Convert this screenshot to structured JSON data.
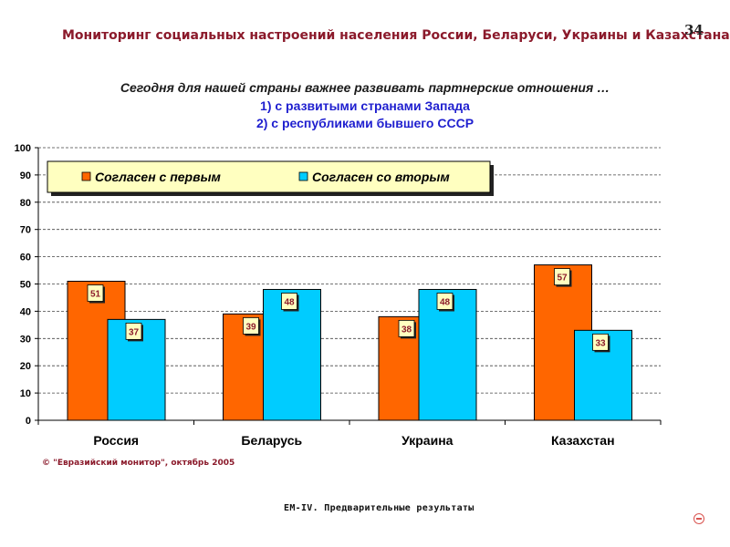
{
  "header": {
    "title": "Мониторинг социальных настроений населения России, Беларуси, Украины и Казахстана",
    "page_number": "34"
  },
  "question": {
    "text": "Сегодня для нашей страны важнее развивать партнерские отношения …",
    "option1": "1) с развитыми странами Запада",
    "option2": "2) с республиками бывшего СССР"
  },
  "chart_data": {
    "type": "bar",
    "categories": [
      "Россия",
      "Беларусь",
      "Украина",
      "Казахстан"
    ],
    "series": [
      {
        "name": "Согласен с первым",
        "values": [
          51,
          39,
          38,
          57
        ],
        "color": "#ff6600"
      },
      {
        "name": "Согласен со вторым",
        "values": [
          37,
          48,
          48,
          33
        ],
        "color": "#00ccff"
      }
    ],
    "ylim": [
      0,
      100
    ],
    "yticks": [
      0,
      10,
      20,
      30,
      40,
      50,
      60,
      70,
      80,
      90,
      100
    ],
    "legend": "top-left",
    "grid": true
  },
  "footer": {
    "copyright": "© \"Евразийский монитор\", октябрь 2005",
    "note": "EM-IV. Предварительные результаты"
  },
  "icons": {
    "nav": "minus-circle-icon"
  }
}
